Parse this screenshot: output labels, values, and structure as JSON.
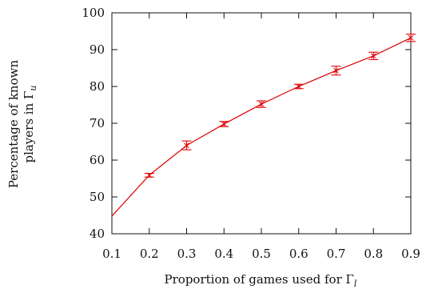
{
  "chart_data": {
    "type": "line",
    "title": "",
    "xlabel": "Proportion of games used for Γ",
    "xlabel_subscript": "l",
    "ylabel_line1": "Percentage of known",
    "ylabel_line2": "players in Γ",
    "ylabel_subscript": "u",
    "xlim": [
      0.1,
      0.9
    ],
    "ylim": [
      40,
      100
    ],
    "x_ticks": [
      "0.1",
      "0.2",
      "0.3",
      "0.4",
      "0.5",
      "0.6",
      "0.7",
      "0.8",
      "0.9"
    ],
    "y_ticks": [
      "40",
      "50",
      "60",
      "70",
      "80",
      "90",
      "100"
    ],
    "grid": false,
    "legend": "none",
    "series": [
      {
        "color": "#e00000",
        "x": [
          0.1,
          0.2,
          0.3,
          0.4,
          0.5,
          0.6,
          0.7,
          0.8,
          0.9
        ],
        "y": [
          44.8,
          55.9,
          64.0,
          69.8,
          75.2,
          80.0,
          84.3,
          88.3,
          93.2
        ],
        "err": [
          null,
          0.5,
          1.2,
          0.7,
          0.9,
          0.6,
          1.2,
          1.0,
          1.0
        ]
      }
    ]
  }
}
